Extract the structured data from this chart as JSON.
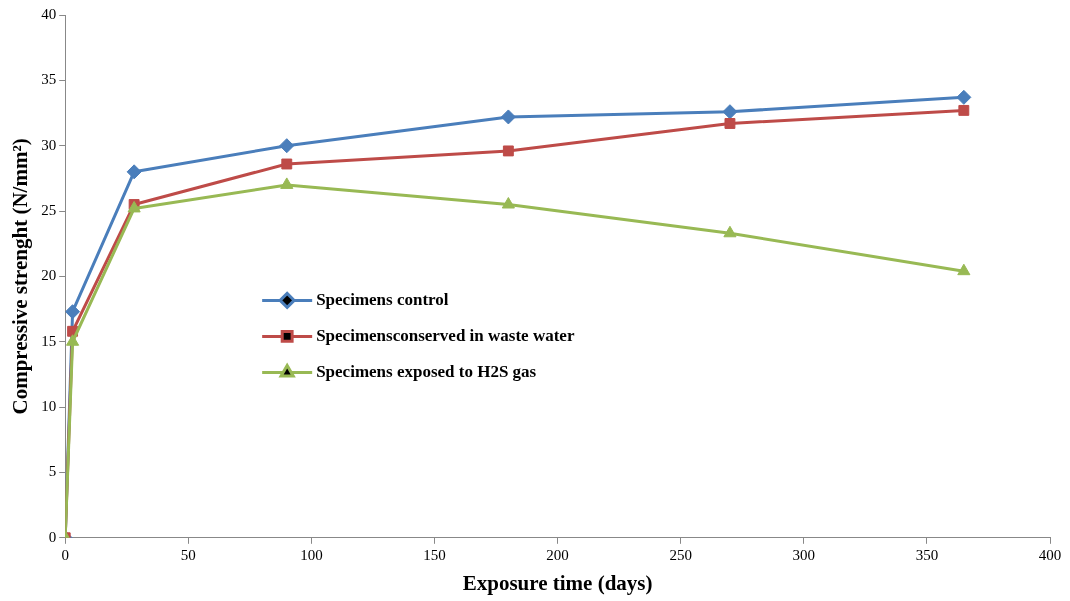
{
  "chart_data": {
    "type": "line",
    "xlabel": "Exposure time (days)",
    "ylabel": "Compressive strenght (N/mm²)",
    "x": [
      0,
      3,
      28,
      90,
      180,
      270,
      365
    ],
    "series": [
      {
        "name": "Specimens control",
        "color": "#4a7ebb",
        "marker": "diamond",
        "values": [
          0,
          17.3,
          28,
          30,
          32.2,
          32.6,
          33.7
        ]
      },
      {
        "name": "Specimensconserved in waste water",
        "color": "#be4b48",
        "marker": "square",
        "values": [
          0,
          15.8,
          25.5,
          28.6,
          29.6,
          31.7,
          32.7
        ]
      },
      {
        "name": "Specimens exposed to H2S gas",
        "color": "#98b954",
        "marker": "triangle",
        "values": [
          0,
          15,
          25.2,
          27,
          25.5,
          23.3,
          20.4
        ]
      }
    ],
    "xlim": [
      0,
      400
    ],
    "xticks": [
      0,
      50,
      100,
      150,
      200,
      250,
      300,
      350,
      400
    ],
    "ylim": [
      0,
      40
    ],
    "yticks": [
      0,
      5,
      10,
      15,
      20,
      25,
      30,
      35,
      40
    ],
    "grid": false,
    "legend": "center left"
  }
}
